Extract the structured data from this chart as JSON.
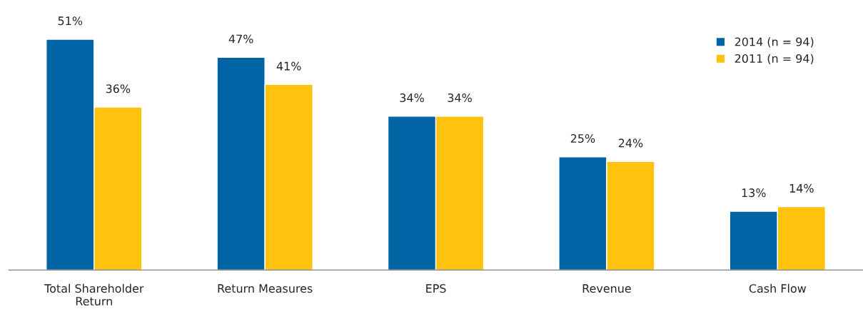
{
  "chart_data": {
    "type": "bar",
    "categories": [
      "Total Shareholder\nReturn",
      "Return Measures",
      "EPS",
      "Revenue",
      "Cash Flow"
    ],
    "series": [
      {
        "name": "2014 (n = 94)",
        "color": "#0064a5",
        "values": [
          51,
          47,
          34,
          25,
          13
        ],
        "value_labels": [
          "51%",
          "47%",
          "34%",
          "25%",
          "13%"
        ]
      },
      {
        "name": "2011 (n = 94)",
        "color": "#ffc20e",
        "values": [
          36,
          41,
          34,
          24,
          14
        ],
        "value_labels": [
          "36%",
          "41%",
          "34%",
          "24%",
          "14%"
        ]
      }
    ],
    "legend": "top right",
    "grid": false
  }
}
